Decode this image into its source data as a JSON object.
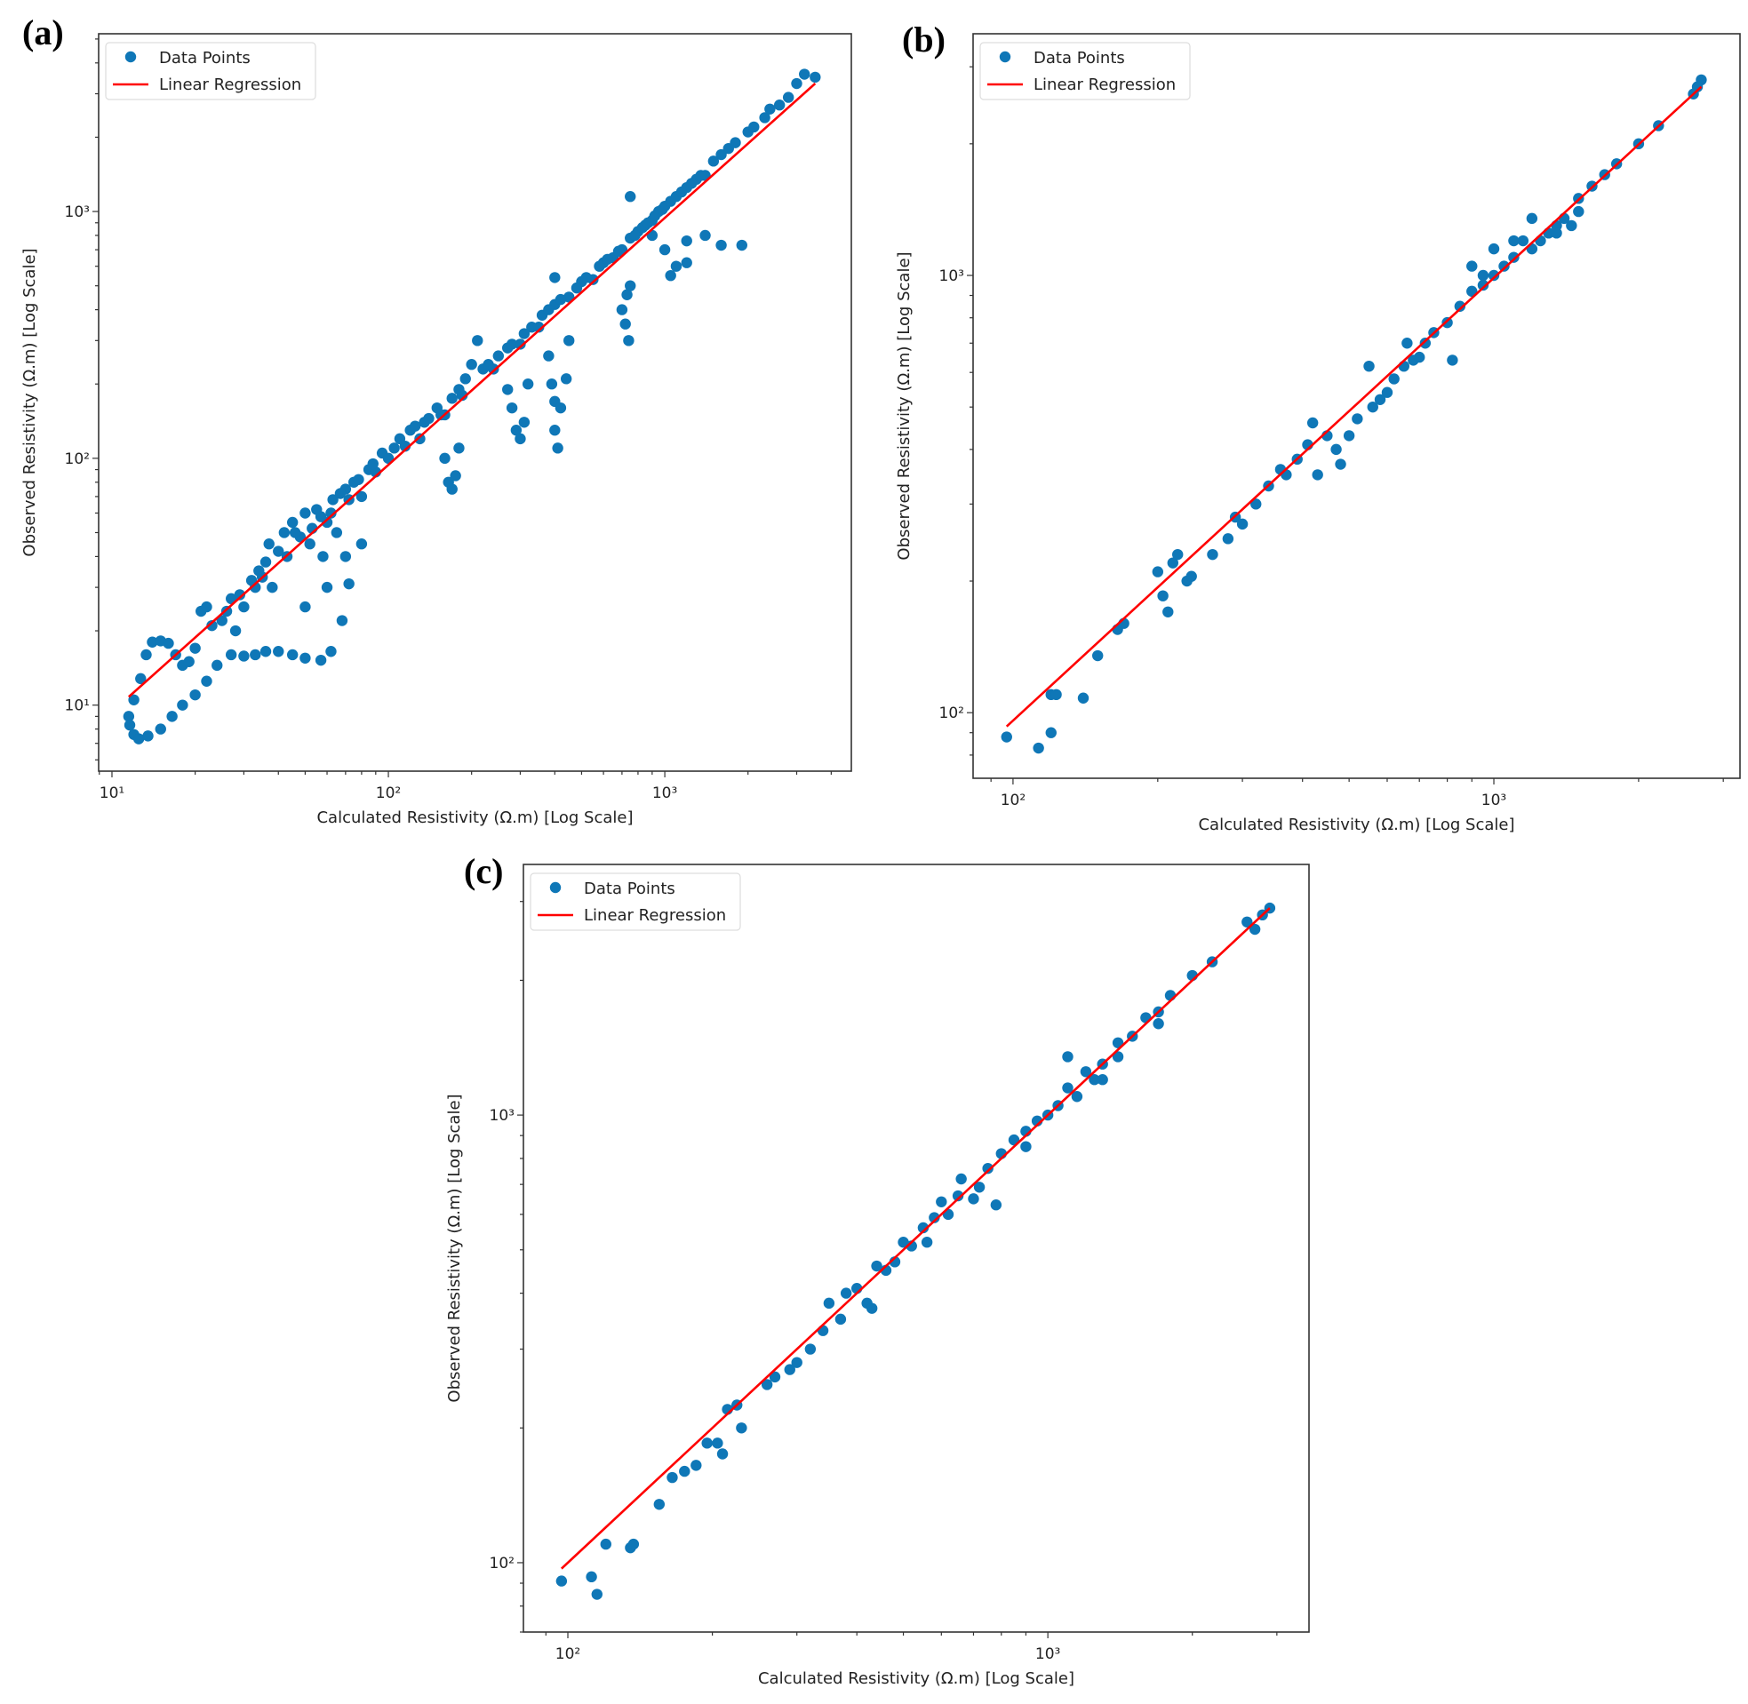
{
  "colors": {
    "points": "#0f77b7",
    "regression": "#ff0000",
    "axes": "#333333"
  },
  "chart_data": [
    {
      "panel": "(a)",
      "type": "scatter",
      "xscale": "log",
      "yscale": "log",
      "xlabel": "Calculated Resistivity (Ω.m) [Log Scale]",
      "ylabel": "Observed Resistivity (Ω.m) [Log Scale]",
      "xlim": [
        8.95,
        4730
      ],
      "ylim": [
        5.4,
        5250
      ],
      "xticks": [
        10,
        100,
        1000
      ],
      "xtick_labels": [
        "10¹",
        "10²",
        "10³"
      ],
      "yticks": [
        10,
        100,
        1000
      ],
      "ytick_labels": [
        "10¹",
        "10²",
        "10³"
      ],
      "legend": {
        "position": "top-left",
        "entries": [
          "Data Points",
          "Linear Regression"
        ]
      },
      "regression": {
        "x": [
          11.5,
          3500
        ],
        "y": [
          10.8,
          3300
        ]
      },
      "points": [
        [
          11.5,
          9
        ],
        [
          11.6,
          8.3
        ],
        [
          12,
          7.6
        ],
        [
          12.5,
          7.3
        ],
        [
          13.5,
          7.5
        ],
        [
          15,
          8
        ],
        [
          16.5,
          9
        ],
        [
          18,
          10
        ],
        [
          20,
          11
        ],
        [
          22,
          12.5
        ],
        [
          24,
          14.5
        ],
        [
          27,
          16
        ],
        [
          30,
          15.8
        ],
        [
          33,
          16
        ],
        [
          36,
          16.5
        ],
        [
          40,
          16.5
        ],
        [
          45,
          16
        ],
        [
          50,
          15.5
        ],
        [
          57,
          15.2
        ],
        [
          62,
          16.5
        ],
        [
          68,
          22
        ],
        [
          72,
          31
        ],
        [
          12,
          10.5
        ],
        [
          12.7,
          12.8
        ],
        [
          13.3,
          16
        ],
        [
          14,
          18
        ],
        [
          15,
          18.2
        ],
        [
          16,
          17.8
        ],
        [
          17,
          16
        ],
        [
          18,
          14.5
        ],
        [
          19,
          15
        ],
        [
          20,
          17
        ],
        [
          21,
          24
        ],
        [
          22,
          25
        ],
        [
          23,
          21
        ],
        [
          25,
          22
        ],
        [
          27,
          27
        ],
        [
          28,
          20
        ],
        [
          30,
          25
        ],
        [
          32,
          32
        ],
        [
          34,
          35
        ],
        [
          36,
          38
        ],
        [
          38,
          30
        ],
        [
          40,
          42
        ],
        [
          42,
          50
        ],
        [
          45,
          55
        ],
        [
          48,
          48
        ],
        [
          50,
          60
        ],
        [
          52,
          45
        ],
        [
          55,
          62
        ],
        [
          58,
          40
        ],
        [
          60,
          55
        ],
        [
          63,
          68
        ],
        [
          65,
          50
        ],
        [
          70,
          75
        ],
        [
          75,
          80
        ],
        [
          80,
          70
        ],
        [
          85,
          90
        ],
        [
          90,
          88
        ],
        [
          95,
          105
        ],
        [
          100,
          100
        ],
        [
          110,
          120
        ],
        [
          120,
          130
        ],
        [
          130,
          120
        ],
        [
          140,
          145
        ],
        [
          150,
          160
        ],
        [
          160,
          150
        ],
        [
          170,
          175
        ],
        [
          180,
          190
        ],
        [
          190,
          210
        ],
        [
          210,
          300
        ],
        [
          200,
          240
        ],
        [
          220,
          230
        ],
        [
          250,
          260
        ],
        [
          270,
          280
        ],
        [
          300,
          290
        ],
        [
          330,
          340
        ],
        [
          360,
          380
        ],
        [
          400,
          420
        ],
        [
          400,
          540
        ],
        [
          450,
          450
        ],
        [
          500,
          520
        ],
        [
          550,
          530
        ],
        [
          600,
          620
        ],
        [
          650,
          650
        ],
        [
          700,
          700
        ],
        [
          750,
          780
        ],
        [
          800,
          830
        ],
        [
          850,
          880
        ],
        [
          900,
          920
        ],
        [
          950,
          1000
        ],
        [
          1000,
          1050
        ],
        [
          1100,
          1150
        ],
        [
          1200,
          1250
        ],
        [
          1300,
          1350
        ],
        [
          1400,
          1400
        ],
        [
          1500,
          1600
        ],
        [
          1700,
          1800
        ],
        [
          2000,
          2100
        ],
        [
          2300,
          2400
        ],
        [
          2600,
          2700
        ],
        [
          3000,
          3300
        ],
        [
          3500,
          3500
        ],
        [
          750,
          1150
        ],
        [
          900,
          800
        ],
        [
          1000,
          700
        ],
        [
          1200,
          760
        ],
        [
          1400,
          800
        ],
        [
          1600,
          730
        ],
        [
          1900,
          730
        ],
        [
          1100,
          600
        ],
        [
          1050,
          550
        ],
        [
          1200,
          620
        ],
        [
          160,
          100
        ],
        [
          165,
          80
        ],
        [
          170,
          75
        ],
        [
          175,
          85
        ],
        [
          180,
          110
        ],
        [
          270,
          190
        ],
        [
          280,
          160
        ],
        [
          290,
          130
        ],
        [
          300,
          120
        ],
        [
          310,
          140
        ],
        [
          320,
          200
        ],
        [
          380,
          260
        ],
        [
          390,
          200
        ],
        [
          400,
          170
        ],
        [
          400,
          130
        ],
        [
          410,
          110
        ],
        [
          420,
          160
        ],
        [
          440,
          210
        ],
        [
          450,
          300
        ],
        [
          700,
          400
        ],
        [
          720,
          350
        ],
        [
          740,
          300
        ],
        [
          730,
          460
        ],
        [
          750,
          500
        ],
        [
          50,
          25
        ],
        [
          60,
          30
        ],
        [
          70,
          40
        ],
        [
          80,
          45
        ],
        [
          26,
          24
        ],
        [
          29,
          28
        ],
        [
          33,
          30
        ],
        [
          35,
          33
        ],
        [
          37,
          45
        ],
        [
          43,
          40
        ],
        [
          46,
          50
        ],
        [
          53,
          52
        ],
        [
          57,
          58
        ],
        [
          62,
          60
        ],
        [
          67,
          72
        ],
        [
          72,
          68
        ],
        [
          78,
          82
        ],
        [
          88,
          95
        ],
        [
          105,
          110
        ],
        [
          115,
          112
        ],
        [
          125,
          135
        ],
        [
          135,
          140
        ],
        [
          155,
          150
        ],
        [
          185,
          180
        ],
        [
          230,
          240
        ],
        [
          240,
          230
        ],
        [
          280,
          290
        ],
        [
          310,
          320
        ],
        [
          350,
          340
        ],
        [
          380,
          400
        ],
        [
          420,
          440
        ],
        [
          480,
          490
        ],
        [
          520,
          540
        ],
        [
          580,
          600
        ],
        [
          620,
          640
        ],
        [
          680,
          690
        ],
        [
          780,
          800
        ],
        [
          830,
          860
        ],
        [
          870,
          900
        ],
        [
          920,
          960
        ],
        [
          980,
          1020
        ],
        [
          1050,
          1100
        ],
        [
          1150,
          1200
        ],
        [
          1250,
          1300
        ],
        [
          1350,
          1400
        ],
        [
          1600,
          1700
        ],
        [
          1800,
          1900
        ],
        [
          2100,
          2200
        ],
        [
          2400,
          2600
        ],
        [
          2800,
          2900
        ],
        [
          3200,
          3600
        ]
      ]
    },
    {
      "panel": "(b)",
      "type": "scatter",
      "xscale": "log",
      "yscale": "log",
      "xlabel": "Calculated Resistivity (Ω.m) [Log Scale]",
      "ylabel": "Observed Resistivity (Ω.m) [Log Scale]",
      "xlim": [
        82.6,
        3250
      ],
      "ylim": [
        70.8,
        3570
      ],
      "xticks": [
        100,
        1000
      ],
      "xtick_labels": [
        "10²",
        "10³"
      ],
      "yticks": [
        100,
        1000
      ],
      "ytick_labels": [
        "10²",
        "10³"
      ],
      "legend": {
        "position": "top-left",
        "entries": [
          "Data Points",
          "Linear Regression"
        ]
      },
      "regression": {
        "x": [
          97,
          2700
        ],
        "y": [
          93,
          2700
        ]
      },
      "points": [
        [
          97,
          88
        ],
        [
          113,
          83
        ],
        [
          120,
          90
        ],
        [
          120,
          110
        ],
        [
          123,
          110
        ],
        [
          140,
          108
        ],
        [
          150,
          135
        ],
        [
          165,
          155
        ],
        [
          170,
          160
        ],
        [
          200,
          210
        ],
        [
          205,
          185
        ],
        [
          210,
          170
        ],
        [
          215,
          220
        ],
        [
          220,
          230
        ],
        [
          230,
          200
        ],
        [
          235,
          205
        ],
        [
          260,
          230
        ],
        [
          280,
          250
        ],
        [
          290,
          280
        ],
        [
          300,
          270
        ],
        [
          320,
          300
        ],
        [
          340,
          330
        ],
        [
          360,
          360
        ],
        [
          370,
          350
        ],
        [
          390,
          380
        ],
        [
          410,
          410
        ],
        [
          420,
          460
        ],
        [
          430,
          350
        ],
        [
          450,
          430
        ],
        [
          470,
          400
        ],
        [
          480,
          370
        ],
        [
          500,
          430
        ],
        [
          520,
          470
        ],
        [
          560,
          500
        ],
        [
          580,
          520
        ],
        [
          600,
          540
        ],
        [
          620,
          580
        ],
        [
          650,
          620
        ],
        [
          660,
          700
        ],
        [
          680,
          640
        ],
        [
          700,
          650
        ],
        [
          720,
          700
        ],
        [
          750,
          740
        ],
        [
          800,
          780
        ],
        [
          820,
          640
        ],
        [
          850,
          850
        ],
        [
          900,
          920
        ],
        [
          950,
          950
        ],
        [
          1000,
          1000
        ],
        [
          1050,
          1050
        ],
        [
          1100,
          1100
        ],
        [
          1150,
          1200
        ],
        [
          1200,
          1150
        ],
        [
          1300,
          1250
        ],
        [
          1350,
          1300
        ],
        [
          1400,
          1350
        ],
        [
          1500,
          1500
        ],
        [
          1600,
          1600
        ],
        [
          1700,
          1700
        ],
        [
          1800,
          1800
        ],
        [
          2000,
          2000
        ],
        [
          2200,
          2200
        ],
        [
          2600,
          2600
        ],
        [
          2700,
          2800
        ],
        [
          1500,
          1400
        ],
        [
          1200,
          1350
        ],
        [
          1000,
          1150
        ],
        [
          900,
          1050
        ],
        [
          550,
          620
        ],
        [
          1250,
          1200
        ],
        [
          1350,
          1250
        ],
        [
          1450,
          1300
        ],
        [
          1100,
          1200
        ],
        [
          950,
          1000
        ],
        [
          2650,
          2700
        ]
      ]
    },
    {
      "panel": "(c)",
      "type": "scatter",
      "xscale": "log",
      "yscale": "log",
      "xlabel": "Calculated Resistivity (Ω.m) [Log Scale]",
      "ylabel": "Observed Resistivity (Ω.m) [Log Scale]",
      "xlim": [
        80.8,
        3500
      ],
      "ylim": [
        70,
        3630
      ],
      "xticks": [
        100,
        1000
      ],
      "xtick_labels": [
        "10²",
        "10³"
      ],
      "yticks": [
        100,
        1000
      ],
      "ytick_labels": [
        "10²",
        "10³"
      ],
      "legend": {
        "position": "top-left",
        "entries": [
          "Data Points",
          "Linear Regression"
        ]
      },
      "regression": {
        "x": [
          97,
          2900
        ],
        "y": [
          97,
          2900
        ]
      },
      "points": [
        [
          97,
          91
        ],
        [
          112,
          93
        ],
        [
          115,
          85
        ],
        [
          120,
          110
        ],
        [
          135,
          108
        ],
        [
          137,
          110
        ],
        [
          155,
          135
        ],
        [
          165,
          155
        ],
        [
          175,
          160
        ],
        [
          185,
          165
        ],
        [
          195,
          185
        ],
        [
          205,
          185
        ],
        [
          210,
          175
        ],
        [
          215,
          220
        ],
        [
          225,
          225
        ],
        [
          230,
          200
        ],
        [
          260,
          250
        ],
        [
          270,
          260
        ],
        [
          290,
          270
        ],
        [
          300,
          280
        ],
        [
          320,
          300
        ],
        [
          340,
          330
        ],
        [
          350,
          380
        ],
        [
          370,
          350
        ],
        [
          380,
          400
        ],
        [
          400,
          410
        ],
        [
          420,
          380
        ],
        [
          430,
          370
        ],
        [
          440,
          460
        ],
        [
          460,
          450
        ],
        [
          480,
          470
        ],
        [
          500,
          520
        ],
        [
          520,
          510
        ],
        [
          550,
          560
        ],
        [
          560,
          520
        ],
        [
          580,
          590
        ],
        [
          600,
          640
        ],
        [
          620,
          600
        ],
        [
          650,
          660
        ],
        [
          660,
          720
        ],
        [
          700,
          650
        ],
        [
          720,
          690
        ],
        [
          750,
          760
        ],
        [
          780,
          630
        ],
        [
          800,
          820
        ],
        [
          850,
          880
        ],
        [
          900,
          920
        ],
        [
          950,
          970
        ],
        [
          1000,
          1000
        ],
        [
          1050,
          1050
        ],
        [
          1100,
          1150
        ],
        [
          1150,
          1100
        ],
        [
          1200,
          1250
        ],
        [
          1300,
          1300
        ],
        [
          1400,
          1350
        ],
        [
          1500,
          1500
        ],
        [
          1600,
          1650
        ],
        [
          1700,
          1700
        ],
        [
          1800,
          1850
        ],
        [
          2000,
          2050
        ],
        [
          2200,
          2200
        ],
        [
          2600,
          2700
        ],
        [
          2900,
          2900
        ],
        [
          2800,
          2800
        ],
        [
          1100,
          1350
        ],
        [
          1300,
          1200
        ],
        [
          900,
          850
        ],
        [
          1250,
          1200
        ],
        [
          1400,
          1450
        ],
        [
          1700,
          1600
        ],
        [
          2700,
          2600
        ]
      ]
    }
  ]
}
